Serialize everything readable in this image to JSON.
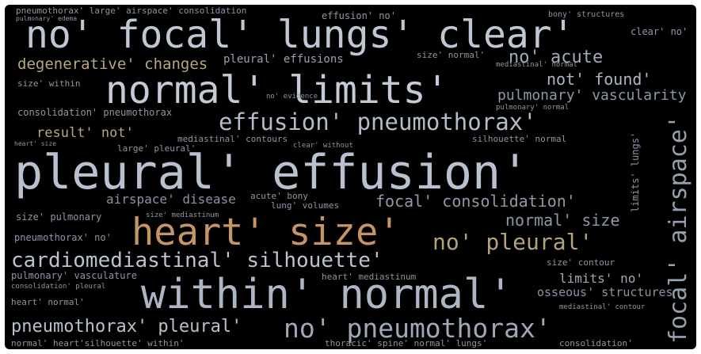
{
  "wordcloud": {
    "words": [
      {
        "text": "pleural' effusion'",
        "color": "#b9c0cf"
      },
      {
        "text": "within' normal'",
        "color": "#aeb6c6"
      },
      {
        "text": "normal' limits'",
        "color": "#c4cad6"
      },
      {
        "text": "no' focal' lungs' clear'",
        "color": "#c0c7d4"
      },
      {
        "text": "heart' size'",
        "color": "#c79563"
      },
      {
        "text": "no' pneumothorax'",
        "color": "#9fa7b8"
      },
      {
        "text": "effusion' pneumothorax'",
        "color": "#b5bcc9"
      },
      {
        "text": "cardiomediastinal' silhouette'",
        "color": "#bcc2ce"
      },
      {
        "text": "no' pleural'",
        "color": "#b5a27c"
      },
      {
        "text": "focal' airspace'",
        "color": "#98a0b0"
      },
      {
        "text": "pneumothorax' pleural'",
        "color": "#b9c0cd"
      },
      {
        "text": "degenerative' changes",
        "color": "#b7a77f"
      },
      {
        "text": "not' found'",
        "color": "#aeb5c2"
      },
      {
        "text": "focal' consolidation'",
        "color": "#8f98a8"
      },
      {
        "text": "normal' size",
        "color": "#8e96a6"
      },
      {
        "text": "pulmonary' vascularity",
        "color": "#8f98a8"
      },
      {
        "text": "no' acute",
        "color": "#a2aab9"
      },
      {
        "text": "pleural' effusions",
        "color": "#98a0ae"
      },
      {
        "text": "airspace' disease",
        "color": "#8a93a3"
      },
      {
        "text": "osseous' structures",
        "color": "#8a93a3"
      },
      {
        "text": "result' not'",
        "color": "#b7a67d"
      },
      {
        "text": "limits' no'",
        "color": "#a0a8b6"
      },
      {
        "text": "effusion' no'",
        "color": "#8e96a5"
      },
      {
        "text": "consolidation' pneumothorax",
        "color": "#8e96a5"
      },
      {
        "text": "size' pulmonary",
        "color": "#8e96a5"
      },
      {
        "text": "pneumothorax' no'",
        "color": "#8e96a5"
      },
      {
        "text": "pulmonary' vasculature",
        "color": "#8e96a5"
      },
      {
        "text": "normal' heart'silhouette' within'",
        "color": "#8e96a5"
      },
      {
        "text": "thoracic' spine' normal' lungs'",
        "color": "#8e96a5"
      },
      {
        "text": "size' contour",
        "color": "#8e96a5"
      },
      {
        "text": "heart' normal'",
        "color": "#8e96a5"
      },
      {
        "text": "mediastinal' contours",
        "color": "#8e96a5"
      },
      {
        "text": "large' pleural'",
        "color": "#8e96a5"
      },
      {
        "text": "lung' volumes",
        "color": "#8e96a5"
      },
      {
        "text": "acute' bony",
        "color": "#8e96a5"
      },
      {
        "text": "silhouette' normal",
        "color": "#8e96a5"
      },
      {
        "text": "heart' mediastinum",
        "color": "#8e96a5"
      },
      {
        "text": "consolidation'",
        "color": "#8e96a5"
      },
      {
        "text": "limits' lungs'",
        "color": "#8e96a5"
      },
      {
        "text": "clear' no'",
        "color": "#8e96a5"
      },
      {
        "text": "bony' structures",
        "color": "#8e96a5"
      },
      {
        "text": "size' normal'",
        "color": "#8e96a5"
      },
      {
        "text": "pneumothorax' large' airspace' consolidation",
        "color": "#8e96a5"
      },
      {
        "text": "mediastinal' normal",
        "color": "#8e96a5"
      },
      {
        "text": "size' within",
        "color": "#8e96a5"
      },
      {
        "text": "no' evidence",
        "color": "#8e96a5"
      },
      {
        "text": "size' mediastinum",
        "color": "#8e96a5"
      },
      {
        "text": "clear' without",
        "color": "#8e96a5"
      },
      {
        "text": "heart' size",
        "color": "#8e96a5"
      },
      {
        "text": "pulmonary' normal",
        "color": "#8e96a5"
      },
      {
        "text": "consolidation' pleural",
        "color": "#8e96a5"
      },
      {
        "text": "mediastinal' contour",
        "color": "#8e96a5"
      },
      {
        "text": "pulmonary' edema",
        "color": "#8e96a5"
      }
    ]
  }
}
